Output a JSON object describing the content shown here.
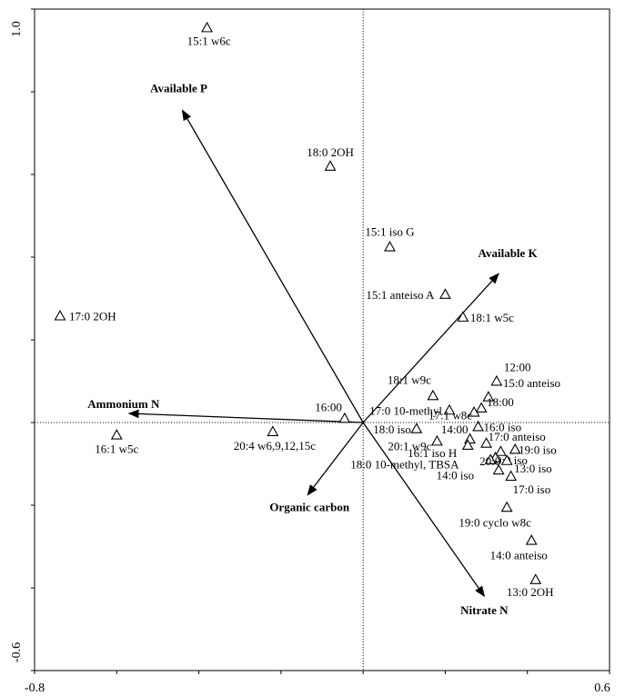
{
  "chart_data": {
    "type": "scatter",
    "subtype": "biplot",
    "title": "",
    "xlabel": "",
    "ylabel": "",
    "xlim": [
      -0.8,
      0.6
    ],
    "ylim": [
      -0.6,
      1.0
    ],
    "x_tick_labels": [
      "-0.8",
      "0.6"
    ],
    "y_tick_labels": [
      "1.0",
      "-0.6"
    ],
    "grid": false,
    "marker": "open-triangle",
    "points": [
      {
        "label": "15:1 w6c",
        "x": -0.38,
        "y": 0.955
      },
      {
        "label": "18:0 2OH",
        "x": -0.08,
        "y": 0.62
      },
      {
        "label": "15:1 iso G",
        "x": 0.065,
        "y": 0.425
      },
      {
        "label": "15:1 anteiso A",
        "x": 0.2,
        "y": 0.31
      },
      {
        "label": "17:0 2OH",
        "x": -0.738,
        "y": 0.258
      },
      {
        "label": "18:1 w5c",
        "x": 0.243,
        "y": 0.255
      },
      {
        "label": "12:00",
        "x": 0.325,
        "y": 0.1
      },
      {
        "label": "18:1 w9c",
        "x": 0.17,
        "y": 0.065
      },
      {
        "label": "15:0 anteiso",
        "x": 0.305,
        "y": 0.062
      },
      {
        "label": "16:00",
        "x": -0.045,
        "y": 0.01
      },
      {
        "label": "17:0 10-methyl",
        "x": 0.21,
        "y": 0.03
      },
      {
        "label": "18:00",
        "x": 0.288,
        "y": 0.035
      },
      {
        "label": "17:1 w8c",
        "x": 0.27,
        "y": 0.025
      },
      {
        "label": "16:0 iso",
        "x": 0.28,
        "y": -0.01
      },
      {
        "label": "18:0 iso",
        "x": 0.13,
        "y": -0.015
      },
      {
        "label": "14:00",
        "x": 0.26,
        "y": -0.04
      },
      {
        "label": "17:0 anteiso",
        "x": 0.3,
        "y": -0.05
      },
      {
        "label": "20:1 w9c",
        "x": 0.18,
        "y": -0.045
      },
      {
        "label": "16:1 iso H",
        "x": 0.255,
        "y": -0.055
      },
      {
        "label": "19:0 iso",
        "x": 0.37,
        "y": -0.065
      },
      {
        "label": "20:0 iso",
        "x": 0.335,
        "y": -0.07
      },
      {
        "label": "18:0 10-methyl, TBSA",
        "x": 0.322,
        "y": -0.085
      },
      {
        "label": "20:0",
        "x": 0.31,
        "y": -0.09
      },
      {
        "label": "13:0 iso",
        "x": 0.35,
        "y": -0.092
      },
      {
        "label": "14:0 iso",
        "x": 0.33,
        "y": -0.115
      },
      {
        "label": "17:0 iso",
        "x": 0.36,
        "y": -0.13
      },
      {
        "label": "19:0 cyclo w8c",
        "x": 0.35,
        "y": -0.205
      },
      {
        "label": "14:0 anteiso",
        "x": 0.41,
        "y": -0.285
      },
      {
        "label": "13:0 2OH",
        "x": 0.42,
        "y": -0.38
      },
      {
        "label": "16:1 w5c",
        "x": -0.6,
        "y": -0.03
      },
      {
        "label": "20:4 w6,9,12,15c",
        "x": -0.22,
        "y": -0.022
      }
    ],
    "vectors": [
      {
        "label": "Available P",
        "x": -0.44,
        "y": 0.755
      },
      {
        "label": "Available K",
        "x": 0.33,
        "y": 0.36
      },
      {
        "label": "Ammonium N",
        "x": -0.57,
        "y": 0.022
      },
      {
        "label": "Organic carbon",
        "x": -0.135,
        "y": -0.175
      },
      {
        "label": "Nitrate N",
        "x": 0.295,
        "y": -0.42
      }
    ]
  }
}
